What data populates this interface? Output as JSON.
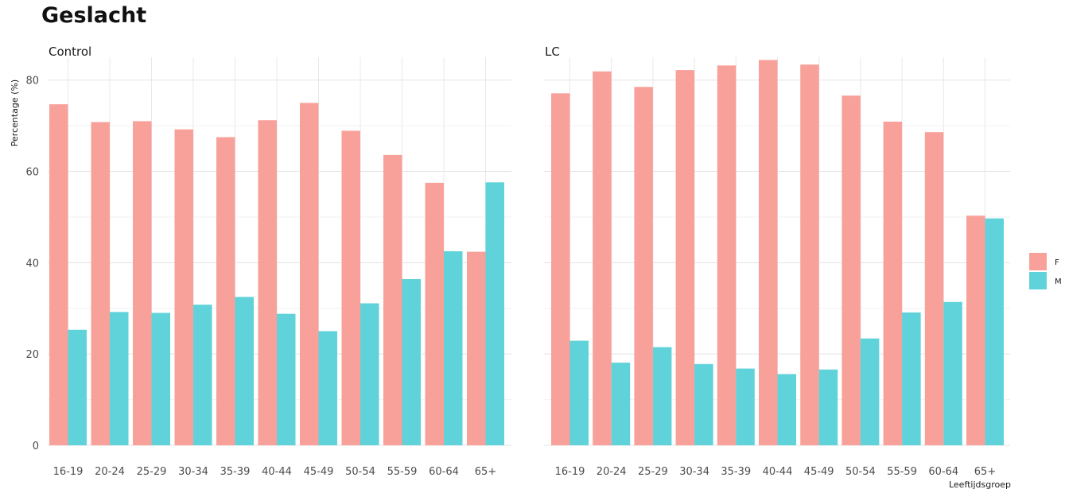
{
  "title": "Geslacht",
  "chart_data": {
    "type": "bar",
    "title": "Geslacht",
    "xlabel": "Leeftijdsgroep",
    "ylabel": "Percentage (%)",
    "ylim": [
      0,
      85
    ],
    "yticks": [
      0,
      20,
      40,
      60,
      80
    ],
    "grid": true,
    "legend": "right",
    "categories": [
      "16-19",
      "20-24",
      "25-29",
      "30-34",
      "35-39",
      "40-44",
      "45-49",
      "50-54",
      "55-59",
      "60-64",
      "65+"
    ],
    "series_colors": {
      "F": "#f8a19a",
      "M": "#5fd3d9"
    },
    "panels": [
      {
        "name": "Control",
        "series": [
          {
            "name": "F",
            "values": [
              74.7,
              70.8,
              71.0,
              69.2,
              67.5,
              71.2,
              75.0,
              68.9,
              63.6,
              57.5,
              42.4
            ]
          },
          {
            "name": "M",
            "values": [
              25.3,
              29.2,
              29.0,
              30.8,
              32.5,
              28.8,
              25.0,
              31.1,
              36.4,
              42.5,
              57.6
            ]
          }
        ]
      },
      {
        "name": "LC",
        "series": [
          {
            "name": "F",
            "values": [
              77.1,
              81.9,
              78.5,
              82.2,
              83.2,
              84.4,
              83.4,
              76.6,
              70.9,
              68.6,
              50.3
            ]
          },
          {
            "name": "M",
            "values": [
              22.9,
              18.1,
              21.5,
              17.8,
              16.8,
              15.6,
              16.6,
              23.4,
              29.1,
              31.4,
              49.7
            ]
          }
        ]
      }
    ]
  }
}
